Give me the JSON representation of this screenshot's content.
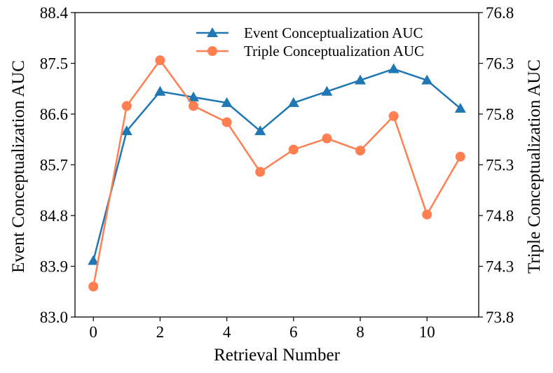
{
  "chart_data": {
    "type": "line",
    "xlabel": "Retrieval Number",
    "ylabel_left": "Event Conceptualization AUC",
    "ylabel_right": "Triple Conceptualization AUC",
    "x": [
      0,
      1,
      2,
      3,
      4,
      5,
      6,
      7,
      8,
      9,
      10,
      11
    ],
    "xlim": [
      -0.55,
      11.55
    ],
    "xticks": [
      0,
      2,
      4,
      6,
      8,
      10
    ],
    "xtick_labels": [
      "0",
      "2",
      "4",
      "6",
      "8",
      "10"
    ],
    "ylim_left": [
      83.0,
      88.4
    ],
    "yticks_left": [
      83.0,
      83.9,
      84.8,
      85.7,
      86.6,
      87.5,
      88.4
    ],
    "ytick_labels_left": [
      "83.0",
      "83.9",
      "84.8",
      "85.7",
      "86.6",
      "87.5",
      "88.4"
    ],
    "ylim_right": [
      73.8,
      76.8
    ],
    "yticks_right": [
      73.8,
      74.3,
      74.8,
      75.3,
      75.8,
      76.3,
      76.8
    ],
    "ytick_labels_right": [
      "73.8",
      "74.3",
      "74.8",
      "75.3",
      "75.8",
      "76.3",
      "76.8"
    ],
    "series": [
      {
        "name": "Event Conceptualization AUC",
        "axis": "left",
        "marker": "triangle",
        "color": "#1f77b4",
        "values": [
          84.0,
          86.3,
          87.0,
          86.9,
          86.8,
          86.3,
          86.8,
          87.0,
          87.2,
          87.4,
          87.2,
          86.7
        ]
      },
      {
        "name": "Triple Conceptualization AUC",
        "axis": "right",
        "marker": "circle",
        "color": "#ff7f50",
        "values": [
          74.1,
          75.88,
          76.33,
          75.88,
          75.72,
          75.23,
          75.45,
          75.56,
          75.44,
          75.78,
          74.81,
          75.38
        ]
      }
    ],
    "legend_position": "top-right",
    "grid": false
  }
}
